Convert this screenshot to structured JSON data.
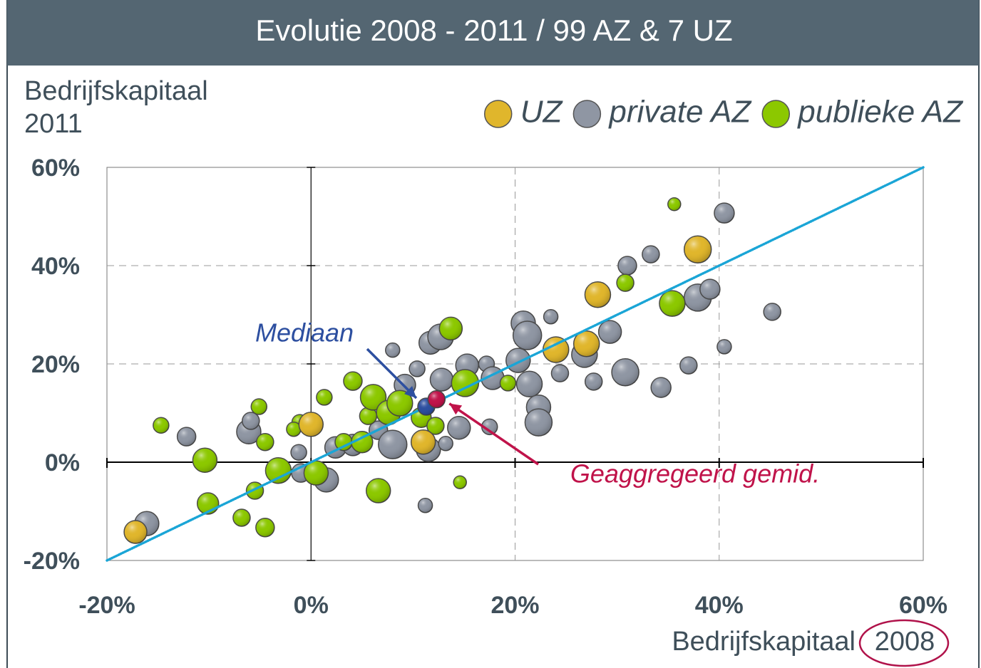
{
  "chart_data": {
    "type": "bubble",
    "title": "Evolutie 2008 - 2011 / 99 AZ & 7 UZ",
    "y_label": [
      "Bedrijfskapitaal",
      "2011"
    ],
    "x_label": [
      "Bedrijfskapitaal",
      "2008"
    ],
    "xlim": [
      -20,
      60
    ],
    "ylim": [
      -20,
      60
    ],
    "xticks": [
      {
        "value": -20,
        "label": "-20%"
      },
      {
        "value": 0,
        "label": "0%"
      },
      {
        "value": 20,
        "label": "20%"
      },
      {
        "value": 40,
        "label": "40%"
      },
      {
        "value": 60,
        "label": "60%"
      }
    ],
    "yticks": [
      {
        "value": -20,
        "label": "-20%"
      },
      {
        "value": 0,
        "label": "0%"
      },
      {
        "value": 20,
        "label": "20%"
      },
      {
        "value": 40,
        "label": "40%"
      },
      {
        "value": 60,
        "label": "60%"
      }
    ],
    "grid": true,
    "legend": "top-right",
    "reference_line": {
      "x": [
        -20,
        60
      ],
      "y": [
        -20,
        60
      ],
      "color": "#1aa5d6"
    },
    "series": [
      {
        "name": "UZ",
        "color": "#e0b62c",
        "x": [
          -17.2,
          0,
          11.0,
          24.0,
          27.0,
          28.1,
          37.9
        ],
        "values": [
          -14.2,
          7.7,
          4.1,
          22.9,
          24.1,
          34.1,
          43.3
        ],
        "sizes": [
          16,
          17,
          17,
          18,
          18,
          18,
          19
        ]
      },
      {
        "name": "private AZ",
        "color": "#8f96a3",
        "x": [
          -16.1,
          -12.2,
          -6.1,
          -5.9,
          -1.2,
          -1.0,
          1.5,
          2.4,
          4.1,
          6.6,
          8.0,
          8.0,
          9.2,
          10.4,
          11.5,
          11.2,
          11.7,
          12.7,
          12.8,
          13.2,
          14.5,
          15.3,
          17.2,
          17.5,
          17.8,
          20.3,
          20.8,
          21.2,
          21.4,
          22.3,
          22.3,
          23.5,
          24.4,
          26.8,
          27.7,
          29.3,
          30.8,
          31.0,
          33.3,
          34.3,
          37.0,
          37.9,
          39.1,
          40.5,
          40.5,
          45.2
        ],
        "values": [
          -12.5,
          5.2,
          6.2,
          8.4,
          2.0,
          -2.2,
          -3.6,
          3.0,
          3.5,
          6.5,
          3.6,
          22.8,
          15.7,
          19.0,
          2.6,
          -8.8,
          24.3,
          25.5,
          16.8,
          3.8,
          7.0,
          19.7,
          20.0,
          7.2,
          17.1,
          20.7,
          28.3,
          25.8,
          15.9,
          11.2,
          8.1,
          29.6,
          18.1,
          21.9,
          16.4,
          26.5,
          18.3,
          40.0,
          42.3,
          15.2,
          19.7,
          33.5,
          35.2,
          50.7,
          23.5,
          30.6
        ],
        "sizes": [
          17,
          13,
          17,
          12,
          11,
          13,
          17,
          15,
          15,
          13,
          20,
          10,
          15,
          11,
          17,
          10,
          16,
          18,
          16,
          10,
          16,
          16,
          11,
          11,
          16,
          17,
          17,
          20,
          18,
          17,
          19,
          10,
          12,
          18,
          12,
          16,
          19,
          13,
          12,
          14,
          12,
          19,
          14,
          14,
          10,
          12
        ]
      },
      {
        "name": "publieke AZ",
        "color": "#8cc800",
        "x": [
          -14.7,
          -10.4,
          -10.1,
          -6.8,
          -5.5,
          -5.1,
          -4.5,
          -4.5,
          -3.2,
          -1.1,
          -1.7,
          0.5,
          1.3,
          3.2,
          4.1,
          5.0,
          5.6,
          6.1,
          6.6,
          7.6,
          8.7,
          10.8,
          12.2,
          13.7,
          14.6,
          15.1,
          19.3,
          30.8,
          35.4,
          35.6
        ],
        "values": [
          7.5,
          0.4,
          -8.4,
          -11.3,
          -5.8,
          11.3,
          4.1,
          -13.3,
          -1.7,
          8.1,
          6.7,
          -2.2,
          13.2,
          4.1,
          16.5,
          4.1,
          9.4,
          13.2,
          -5.8,
          10.1,
          12.0,
          9.1,
          7.4,
          27.2,
          -4.1,
          16.1,
          16.1,
          36.5,
          32.3,
          52.5
        ],
        "sizes": [
          11,
          17,
          15,
          12,
          12,
          11,
          12,
          13,
          18,
          11,
          10,
          17,
          11,
          12,
          13,
          15,
          12,
          18,
          17,
          17,
          18,
          14,
          12,
          16,
          9,
          19,
          11,
          12,
          18,
          9
        ]
      }
    ],
    "annotations": [
      {
        "text": "Mediaan",
        "x": 11.3,
        "y": 11.3,
        "size": 12,
        "color": "#2d4fa0"
      },
      {
        "text": "Geaggregeerd gemid.",
        "x": 12.3,
        "y": 12.8,
        "size": 12,
        "color": "#c0134a"
      }
    ]
  }
}
